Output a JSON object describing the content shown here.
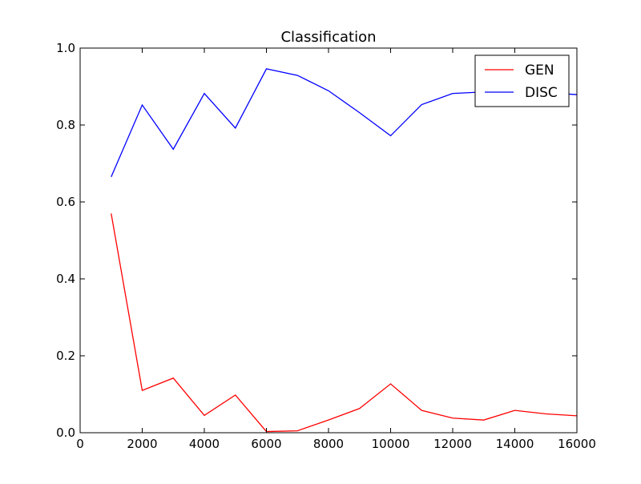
{
  "chart_data": {
    "type": "line",
    "title": "Classification",
    "xlabel": "",
    "ylabel": "",
    "xlim": [
      0,
      16000
    ],
    "ylim": [
      0.0,
      1.0
    ],
    "x_ticks": [
      0,
      2000,
      4000,
      6000,
      8000,
      10000,
      12000,
      14000,
      16000
    ],
    "x_tick_labels": [
      "0",
      "2000",
      "4000",
      "6000",
      "8000",
      "10000",
      "12000",
      "14000",
      "16000"
    ],
    "y_ticks": [
      0.0,
      0.2,
      0.4,
      0.6,
      0.8,
      1.0
    ],
    "y_tick_labels": [
      "0.0",
      "0.2",
      "0.4",
      "0.6",
      "0.8",
      "1.0"
    ],
    "grid": false,
    "legend_position": "top-right",
    "x": [
      1000,
      2000,
      3000,
      4000,
      5000,
      6000,
      7000,
      8000,
      9000,
      10000,
      11000,
      12000,
      13000,
      14000,
      15000,
      16000
    ],
    "series": [
      {
        "name": "GEN",
        "color": "#ff0000",
        "values": [
          0.57,
          0.11,
          0.142,
          0.045,
          0.098,
          0.003,
          0.005,
          0.033,
          0.063,
          0.127,
          0.058,
          0.038,
          0.033,
          0.058,
          0.049,
          0.044
        ]
      },
      {
        "name": "DISC",
        "color": "#0000ff",
        "values": [
          0.665,
          0.852,
          0.737,
          0.882,
          0.792,
          0.946,
          0.929,
          0.889,
          0.832,
          0.772,
          0.853,
          0.882,
          0.886,
          0.887,
          0.884,
          0.879
        ]
      }
    ]
  }
}
